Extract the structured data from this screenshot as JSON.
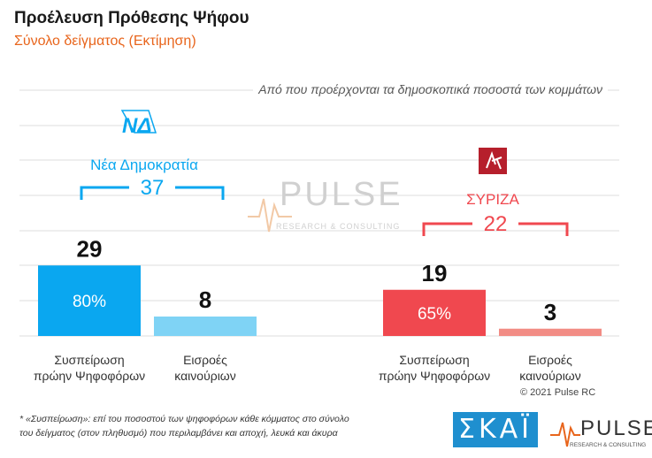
{
  "title": "Προέλευση Πρόθεσης Ψήφου",
  "subtitle": "Σύνολο δείγματος   (Εκτίμηση)",
  "top_note": "Από που προέρχονται τα δημοσκοπικά ποσοστά των κομμάτων",
  "footnote_line1": "* «Συσπείρωση»: επί του ποσοστού των ψηφοφόρων κάθε κόμματος στο σύνολο",
  "footnote_line2": "του δείγματος (στον πληθυσμό) που περιλαμβάνει και αποχή, λευκά και άκυρα",
  "copyright": "© 2021 Pulse RC",
  "watermark": {
    "name": "PULSE",
    "tagline": "RESEARCH & CONSULTING"
  },
  "logos": {
    "skai": "ΣΚΑΪ",
    "pulse": "PULSE",
    "pulse_tagline": "RESEARCH & CONSULTING",
    "nd_logo": "ΝΔ"
  },
  "colors": {
    "nd": "#0aa7f0",
    "nd_light": "#7fd3f5",
    "syriza": "#f0484f",
    "syriza_light": "#f28c85",
    "accent": "#e8651c",
    "syriza_logo_bg": "#b61f2c"
  },
  "chart_data": {
    "type": "bar",
    "parties": [
      {
        "name": "Νέα Δημοκρατία",
        "total": 37,
        "color": "#0aa7f0",
        "bars": [
          {
            "category": "Συσπείρωση πρώην Ψηφοφόρων",
            "value": 29,
            "pct_label": "80%",
            "color": "#0aa7f0"
          },
          {
            "category": "Εισροές καινούριων",
            "value": 8,
            "pct_label": "",
            "color": "#7fd3f5"
          }
        ]
      },
      {
        "name": "ΣΥΡΙΖΑ",
        "total": 22,
        "color": "#f0484f",
        "bars": [
          {
            "category": "Συσπείρωση πρώην Ψηφοφόρων",
            "value": 19,
            "pct_label": "65%",
            "color": "#f0484f"
          },
          {
            "category": "Εισροές καινούριων",
            "value": 3,
            "pct_label": "",
            "color": "#f28c85"
          }
        ]
      }
    ],
    "category_labels": {
      "retention_line1": "Συσπείρωση",
      "retention_line2": "πρώην Ψηφοφόρων",
      "inflow_line1": "Εισροές",
      "inflow_line2": "καινούριων"
    },
    "grid": true
  }
}
